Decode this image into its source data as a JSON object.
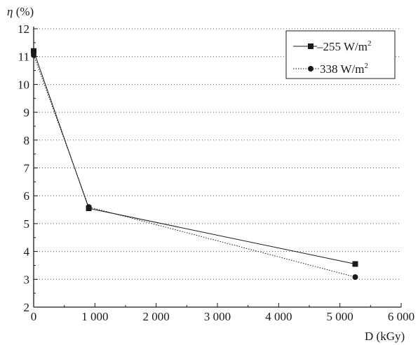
{
  "chart_data": {
    "type": "line",
    "title": "",
    "ylabel_symbol": "η",
    "ylabel_unit": " (%)",
    "xlabel": "D (kGy)",
    "xlim": [
      0,
      6000
    ],
    "ylim": [
      2,
      12
    ],
    "x_ticks": [
      0,
      1000,
      2000,
      3000,
      4000,
      5000,
      6000
    ],
    "x_tick_labels": [
      "0",
      "1 000",
      "2 000",
      "3 000",
      "4 000",
      "5 000",
      "6 000"
    ],
    "y_ticks": [
      2,
      3,
      4,
      5,
      6,
      7,
      8,
      9,
      10,
      11,
      12
    ],
    "y_tick_labels": [
      "2",
      "3",
      "4",
      "5",
      "6",
      "7",
      "8",
      "9",
      "10",
      "11",
      "12"
    ],
    "grid": "horizontal dotted",
    "legend_position": "top-right",
    "series": [
      {
        "name_prefix": "–255 W/m",
        "name_sup": "2",
        "marker": "square",
        "line_style": "solid",
        "color": "#1a1a1a",
        "x": [
          0,
          900,
          5250
        ],
        "y": [
          11.2,
          5.55,
          3.55
        ]
      },
      {
        "name_prefix": "338 W/m",
        "name_sup": "2",
        "marker": "circle",
        "line_style": "dotted",
        "color": "#1a1a1a",
        "x": [
          0,
          900,
          5250
        ],
        "y": [
          11.05,
          5.6,
          3.08
        ]
      }
    ]
  }
}
